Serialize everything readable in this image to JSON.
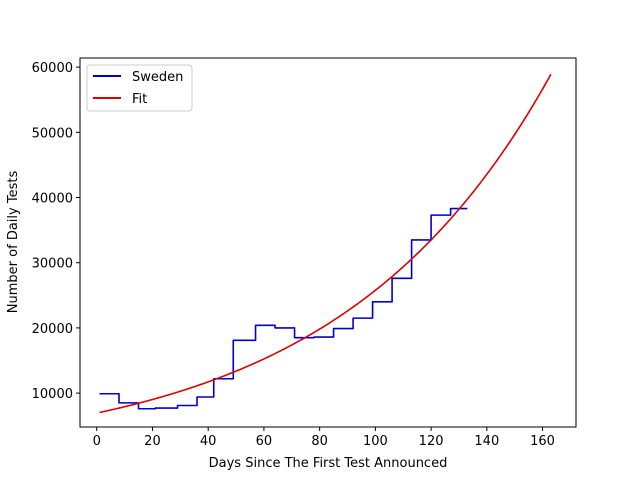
{
  "chart_data": {
    "type": "line",
    "xlabel": "Days Since The First Test Announced",
    "ylabel": "Number of Daily Tests",
    "xlim": [
      -6,
      172
    ],
    "ylim": [
      4800,
      61400
    ],
    "xticks": [
      0,
      20,
      40,
      60,
      80,
      100,
      120,
      140,
      160
    ],
    "yticks": [
      10000,
      20000,
      30000,
      40000,
      50000,
      60000
    ],
    "grid": false,
    "legend": "top-left",
    "series": [
      {
        "name": "Sweden",
        "color": "#0000cc",
        "style": "step",
        "points": [
          [
            1,
            9900
          ],
          [
            8,
            9900
          ],
          [
            8,
            8500
          ],
          [
            15,
            8500
          ],
          [
            15,
            7600
          ],
          [
            21,
            7600
          ],
          [
            21,
            7700
          ],
          [
            29,
            7700
          ],
          [
            29,
            8100
          ],
          [
            36,
            8100
          ],
          [
            36,
            9400
          ],
          [
            42,
            9400
          ],
          [
            42,
            12200
          ],
          [
            49,
            12200
          ],
          [
            49,
            18100
          ],
          [
            57,
            18100
          ],
          [
            57,
            20400
          ],
          [
            64,
            20400
          ],
          [
            64,
            20000
          ],
          [
            71,
            20000
          ],
          [
            71,
            18500
          ],
          [
            78,
            18500
          ],
          [
            78,
            18600
          ],
          [
            85,
            18600
          ],
          [
            85,
            19900
          ],
          [
            92,
            19900
          ],
          [
            92,
            21500
          ],
          [
            99,
            21500
          ],
          [
            99,
            24000
          ],
          [
            106,
            24000
          ],
          [
            106,
            27600
          ],
          [
            113,
            27600
          ],
          [
            113,
            33500
          ],
          [
            120,
            33500
          ],
          [
            120,
            37300
          ],
          [
            127,
            37300
          ],
          [
            127,
            38300
          ],
          [
            133,
            38300
          ]
        ]
      },
      {
        "name": "Fit",
        "color": "#dd0000",
        "style": "curve",
        "model": {
          "a": 6935,
          "b": 0.013125,
          "x_start": 1,
          "x_end": 163
        }
      }
    ]
  }
}
